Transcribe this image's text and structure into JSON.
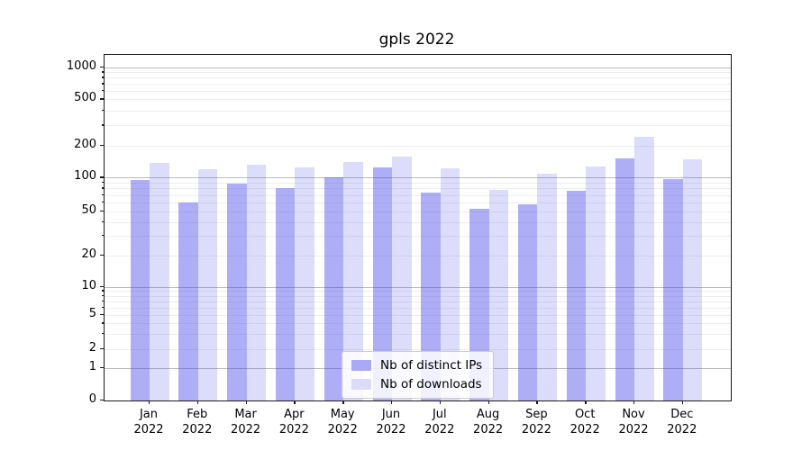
{
  "figure": {
    "title": "gpls 2022"
  },
  "colors": {
    "bar_distinct_ips": "rgba(62,62,235,0.42)",
    "bar_downloads": "rgba(62,62,235,0.18)",
    "legend_swatch_distinct_ips": "#a9a9f6",
    "legend_swatch_downloads": "#dcdcfa",
    "gridline_major": "#bbbbbb",
    "gridline_minor": "#ededed"
  },
  "chart_data": {
    "type": "bar",
    "title": "gpls 2022",
    "categories": [
      "Jan 2022",
      "Feb 2022",
      "Mar 2022",
      "Apr 2022",
      "May 2022",
      "Jun 2022",
      "Jul 2022",
      "Aug 2022",
      "Sep 2022",
      "Oct 2022",
      "Nov 2022",
      "Dec 2022"
    ],
    "series": [
      {
        "name": "Nb of distinct IPs",
        "values": [
          96,
          60,
          89,
          81,
          101,
          124,
          74,
          53,
          58,
          76,
          151,
          97
        ]
      },
      {
        "name": "Nb of downloads",
        "values": [
          139,
          120,
          133,
          124,
          140,
          158,
          122,
          78,
          109,
          128,
          240,
          150
        ]
      }
    ],
    "xlabel": "",
    "ylabel": "",
    "yscale": "symlog",
    "yticks": [
      0,
      1,
      2,
      5,
      10,
      20,
      50,
      100,
      200,
      500,
      1000
    ],
    "ylim": [
      0,
      1300
    ],
    "grid": true,
    "legend_position": "lower center"
  }
}
